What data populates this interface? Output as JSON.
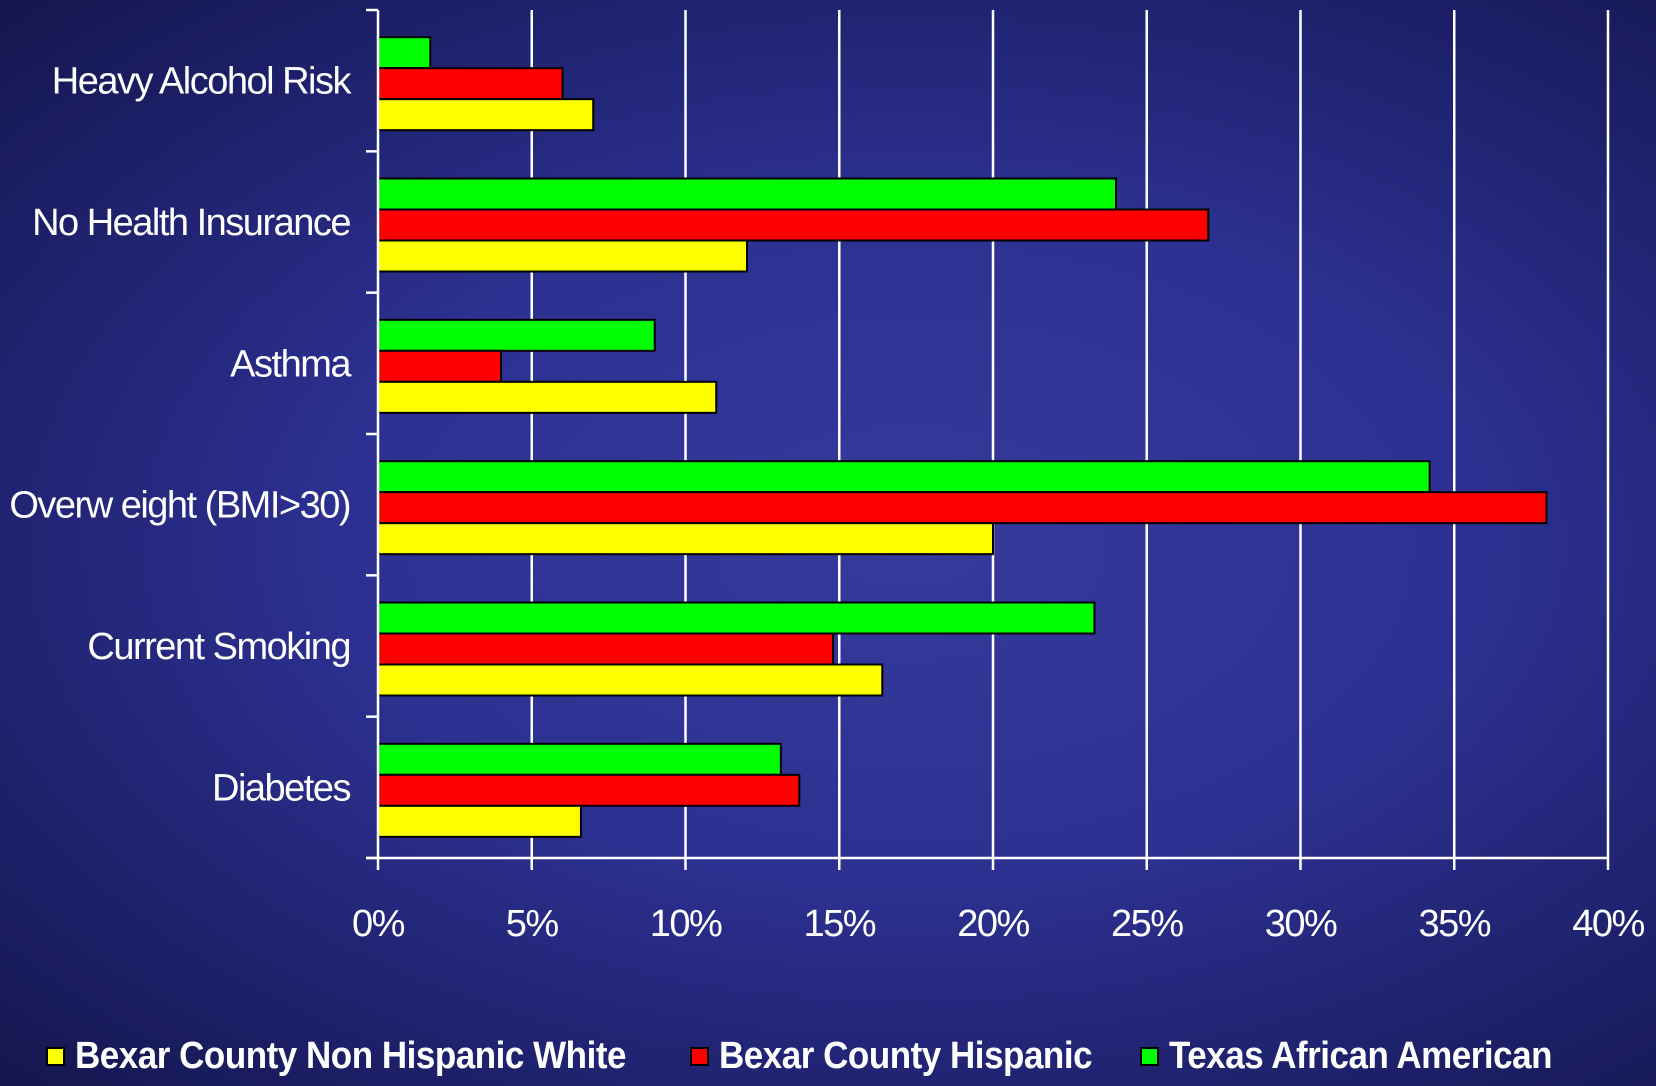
{
  "chart_data": {
    "type": "bar",
    "orientation": "horizontal",
    "categories": [
      "Heavy Alcohol Risk",
      "No Health Insurance",
      "Asthma",
      "Overw eight (BMI>30)",
      "Current Smoking",
      "Diabetes"
    ],
    "series": [
      {
        "name": "Texas African American",
        "color": "#00ff00",
        "values": [
          1.7,
          24.0,
          9.0,
          34.2,
          23.3,
          13.1
        ]
      },
      {
        "name": "Bexar County Hispanic",
        "color": "#ff0000",
        "values": [
          6.0,
          27.0,
          4.0,
          38.0,
          14.8,
          13.7
        ]
      },
      {
        "name": "Bexar County Non Hispanic White",
        "color": "#ffff00",
        "values": [
          7.0,
          12.0,
          11.0,
          20.0,
          16.4,
          6.6
        ]
      }
    ],
    "xlim": [
      0,
      40
    ],
    "xticks": [
      0,
      5,
      10,
      15,
      20,
      25,
      30,
      35,
      40
    ],
    "xtick_labels": [
      "0%",
      "5%",
      "10%",
      "15%",
      "20%",
      "25%",
      "30%",
      "35%",
      "40%"
    ],
    "grid": "vertical",
    "legend": {
      "position": "bottom",
      "entries": [
        {
          "label": "Bexar County Non Hispanic White",
          "color": "#ffff00"
        },
        {
          "label": "Bexar County Hispanic",
          "color": "#ff0000"
        },
        {
          "label": "Texas African American",
          "color": "#00ff00"
        }
      ]
    }
  }
}
